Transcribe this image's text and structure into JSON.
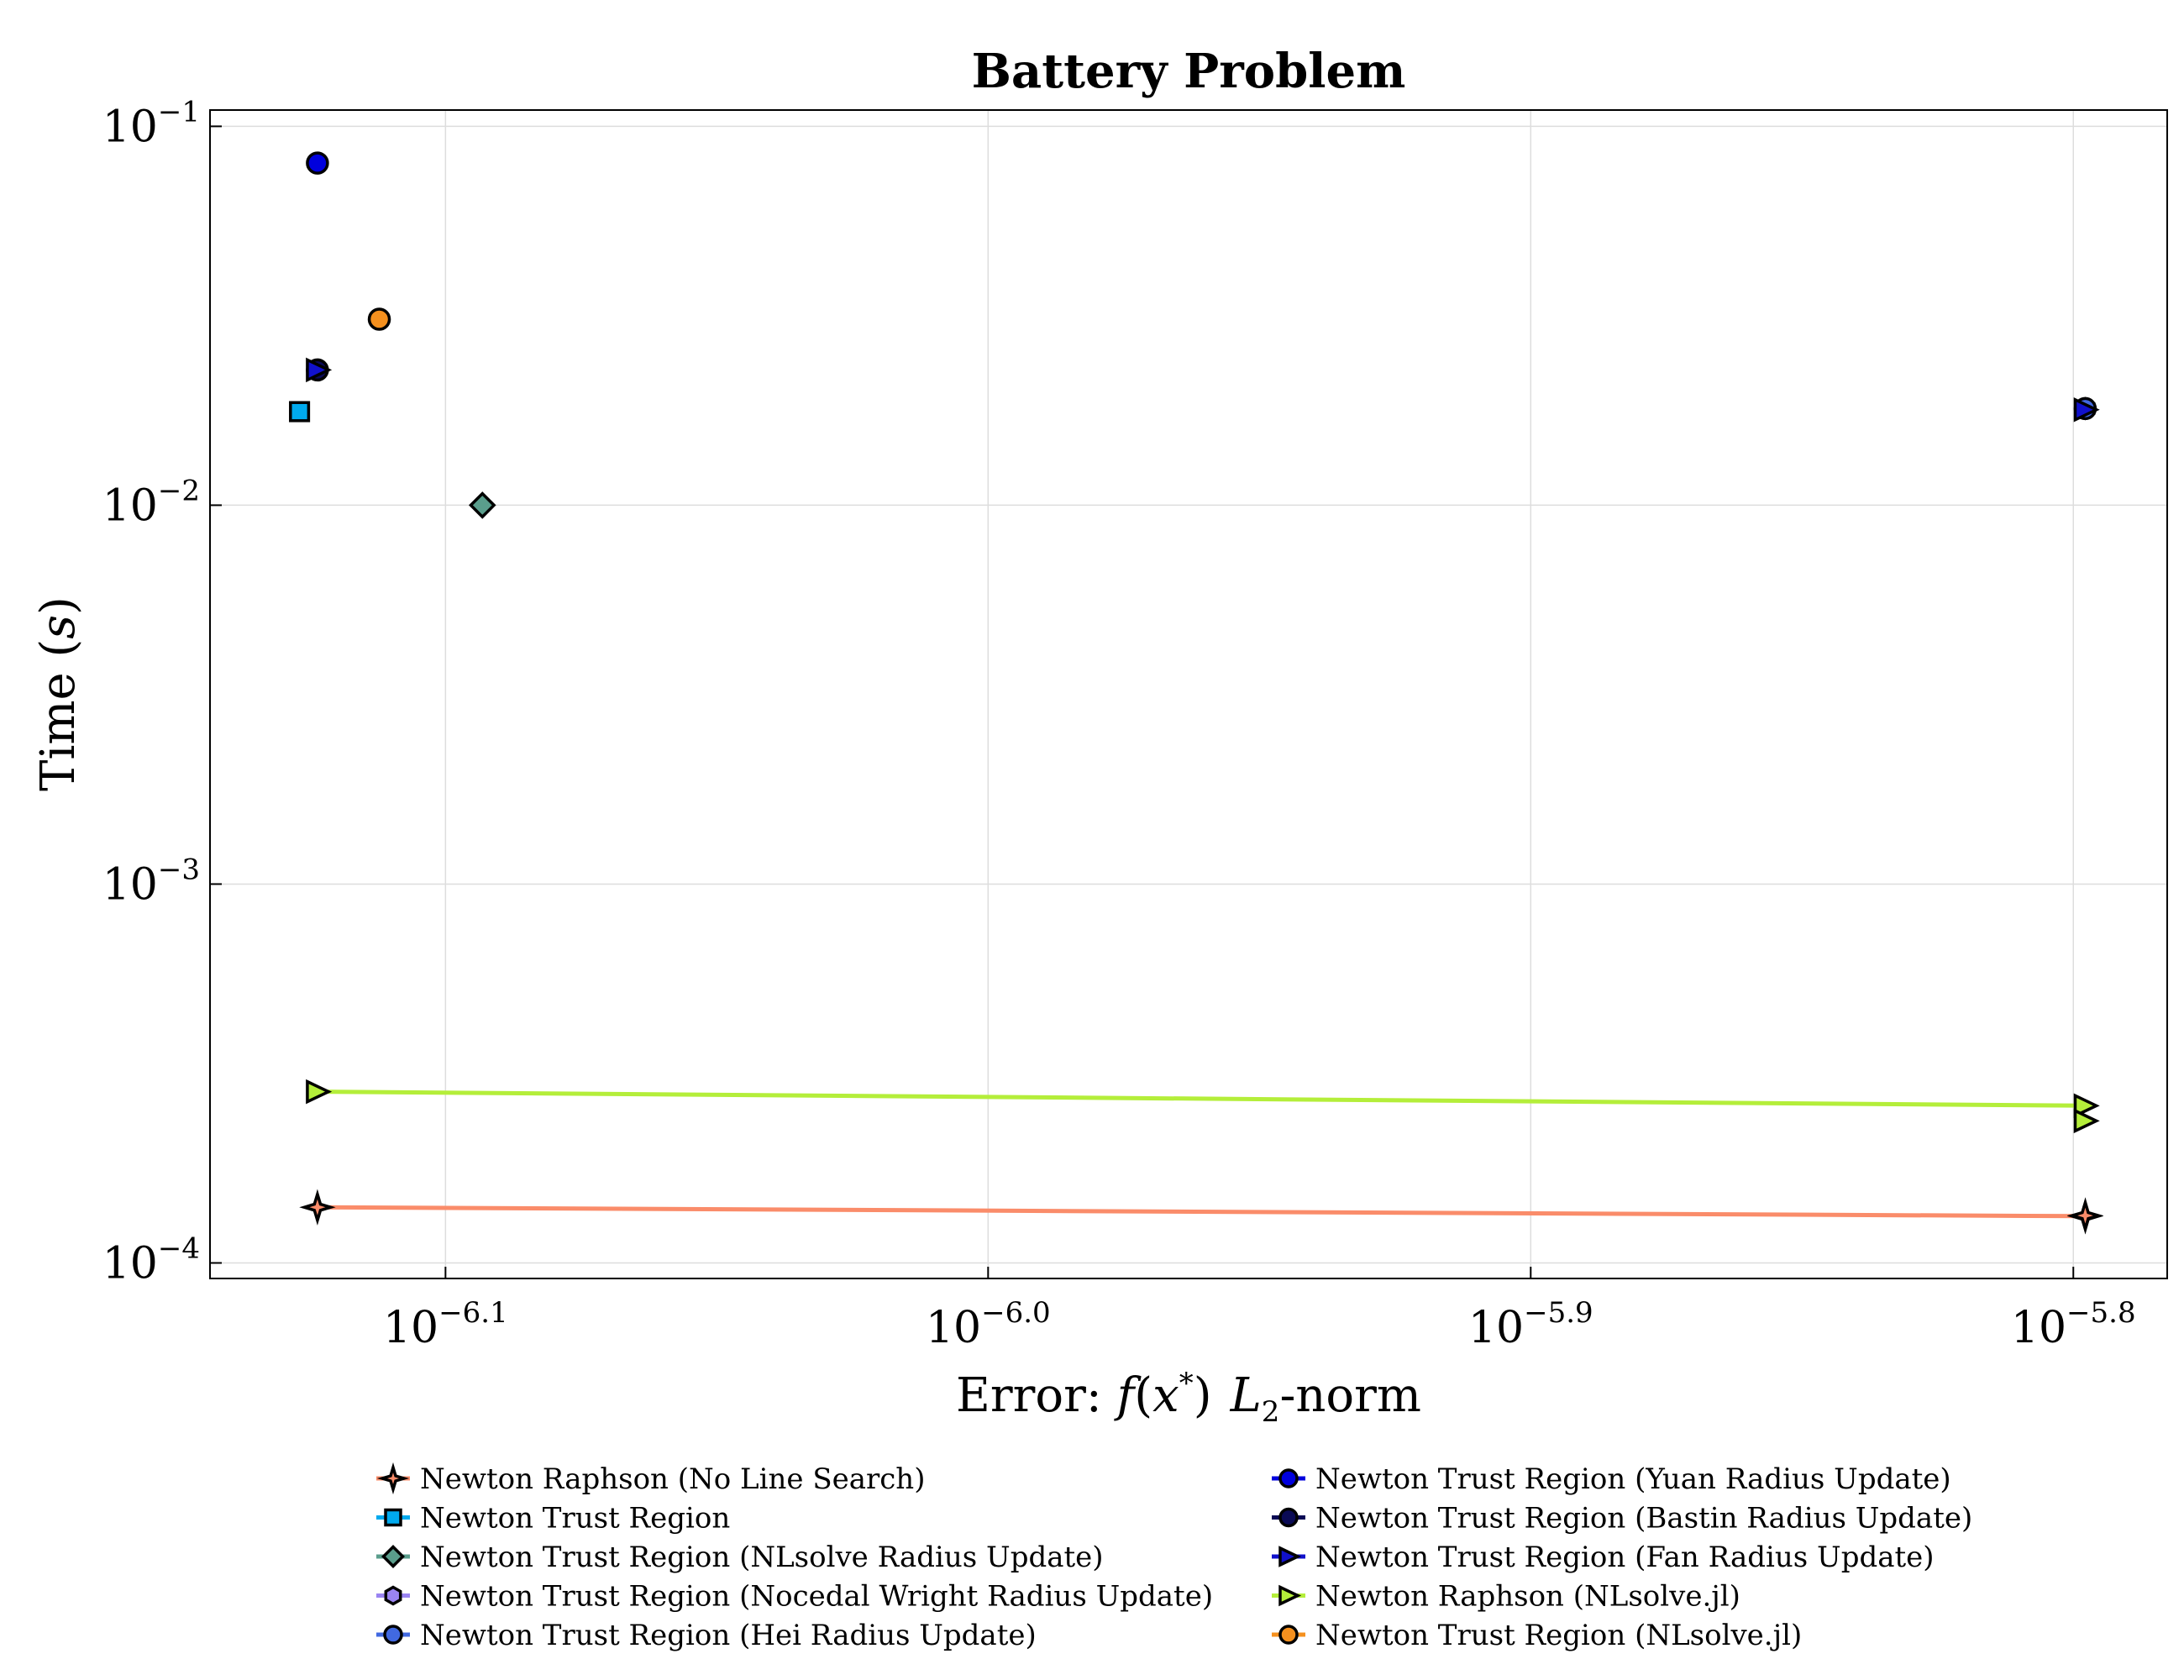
{
  "chart_data": {
    "type": "scatter",
    "title": "Battery Problem",
    "xlabel": "Error: f(x*)  L2-norm",
    "xlabel_parts": {
      "prefix": "Error: ",
      "f": "f",
      "open": "(",
      "x": "x",
      "star": "*",
      "close": ")",
      "L": "L",
      "sub": "2",
      "suffix": "-norm"
    },
    "ylabel": "Time (s)",
    "ylabel_parts": {
      "prefix": "Time (",
      "s": "s",
      "suffix": ")"
    },
    "x_scale": "log10",
    "y_scale": "log10",
    "xlim_exp": [
      -6.1434,
      -5.7827
    ],
    "ylim_exp": [
      -4.041,
      -0.957
    ],
    "x_ticks": [
      {
        "base": "10",
        "exp": "−6.1",
        "value_exp": -6.1
      },
      {
        "base": "10",
        "exp": "−6.0",
        "value_exp": -6.0
      },
      {
        "base": "10",
        "exp": "−5.9",
        "value_exp": -5.9
      },
      {
        "base": "10",
        "exp": "−5.8",
        "value_exp": -5.8
      }
    ],
    "y_ticks": [
      {
        "base": "10",
        "exp": "−1",
        "value_exp": -1
      },
      {
        "base": "10",
        "exp": "−2",
        "value_exp": -2
      },
      {
        "base": "10",
        "exp": "−3",
        "value_exp": -3
      },
      {
        "base": "10",
        "exp": "−4",
        "value_exp": -4
      }
    ],
    "grid": true,
    "legend_position": "bottom, two columns",
    "series": [
      {
        "name": "Newton Raphson (No Line Search)",
        "color": "#fa8c6a",
        "marker": "star4",
        "line": true,
        "points": [
          [
            -6.1236,
            -3.853
          ],
          [
            -5.7978,
            -3.8765
          ]
        ]
      },
      {
        "name": "Newton Trust Region",
        "color": "#00aaee",
        "marker": "square",
        "line": false,
        "points": [
          [
            -6.1269,
            -1.753
          ]
        ]
      },
      {
        "name": "Newton Trust Region (NLsolve Radius Update)",
        "color": "#5a9e8c",
        "marker": "diamond",
        "line": false,
        "points": [
          [
            -6.0932,
            -2.0
          ]
        ]
      },
      {
        "name": "Newton Trust Region (Nocedal Wright Radius Update)",
        "color": "#9a84f2",
        "marker": "hexagon",
        "line": false,
        "points": [
          [
            -5.7978,
            -1.745
          ]
        ]
      },
      {
        "name": "Newton Trust Region (Hei Radius Update)",
        "color": "#4169e1",
        "marker": "circle",
        "line": false,
        "points": [
          [
            -5.7978,
            -1.745
          ]
        ]
      },
      {
        "name": "Newton Trust Region (Yuan Radius Update)",
        "color": "#0000dd",
        "marker": "circle",
        "line": false,
        "points": [
          [
            -6.1236,
            -1.097
          ]
        ]
      },
      {
        "name": "Newton Trust Region (Bastin Radius Update)",
        "color": "#0a0a55",
        "marker": "circle",
        "line": false,
        "points": [
          [
            -6.1236,
            -1.643
          ]
        ]
      },
      {
        "name": "Newton Trust Region (Fan Radius Update)",
        "color": "#1111cc",
        "marker": "triangle-right",
        "line": false,
        "points": [
          [
            -6.1236,
            -1.643
          ]
        ]
      },
      {
        "name": "Newton Raphson (NLsolve.jl)",
        "color": "#b4ee3a",
        "marker": "triangle-right",
        "line": true,
        "points": [
          [
            -6.1236,
            -3.548
          ],
          [
            -5.7978,
            -3.585
          ]
        ]
      },
      {
        "name": "Newton Trust Region (NLsolve.jl)",
        "color": "#f5901e",
        "marker": "circle",
        "line": false,
        "points": [
          [
            -6.1122,
            -1.509
          ]
        ]
      }
    ],
    "extra_markers": [
      {
        "series_index": 0,
        "marker": "star4",
        "color": "#fa8c6a",
        "point": [
          -5.7978,
          -3.875
        ]
      },
      {
        "series_index": 8,
        "marker": "triangle-right",
        "color": "#b4ee3a",
        "point": [
          -5.7978,
          -3.625
        ]
      },
      {
        "series_index": 7,
        "marker": "triangle-right",
        "color": "#1111cc",
        "point": [
          -5.7978,
          -1.748
        ]
      }
    ]
  }
}
